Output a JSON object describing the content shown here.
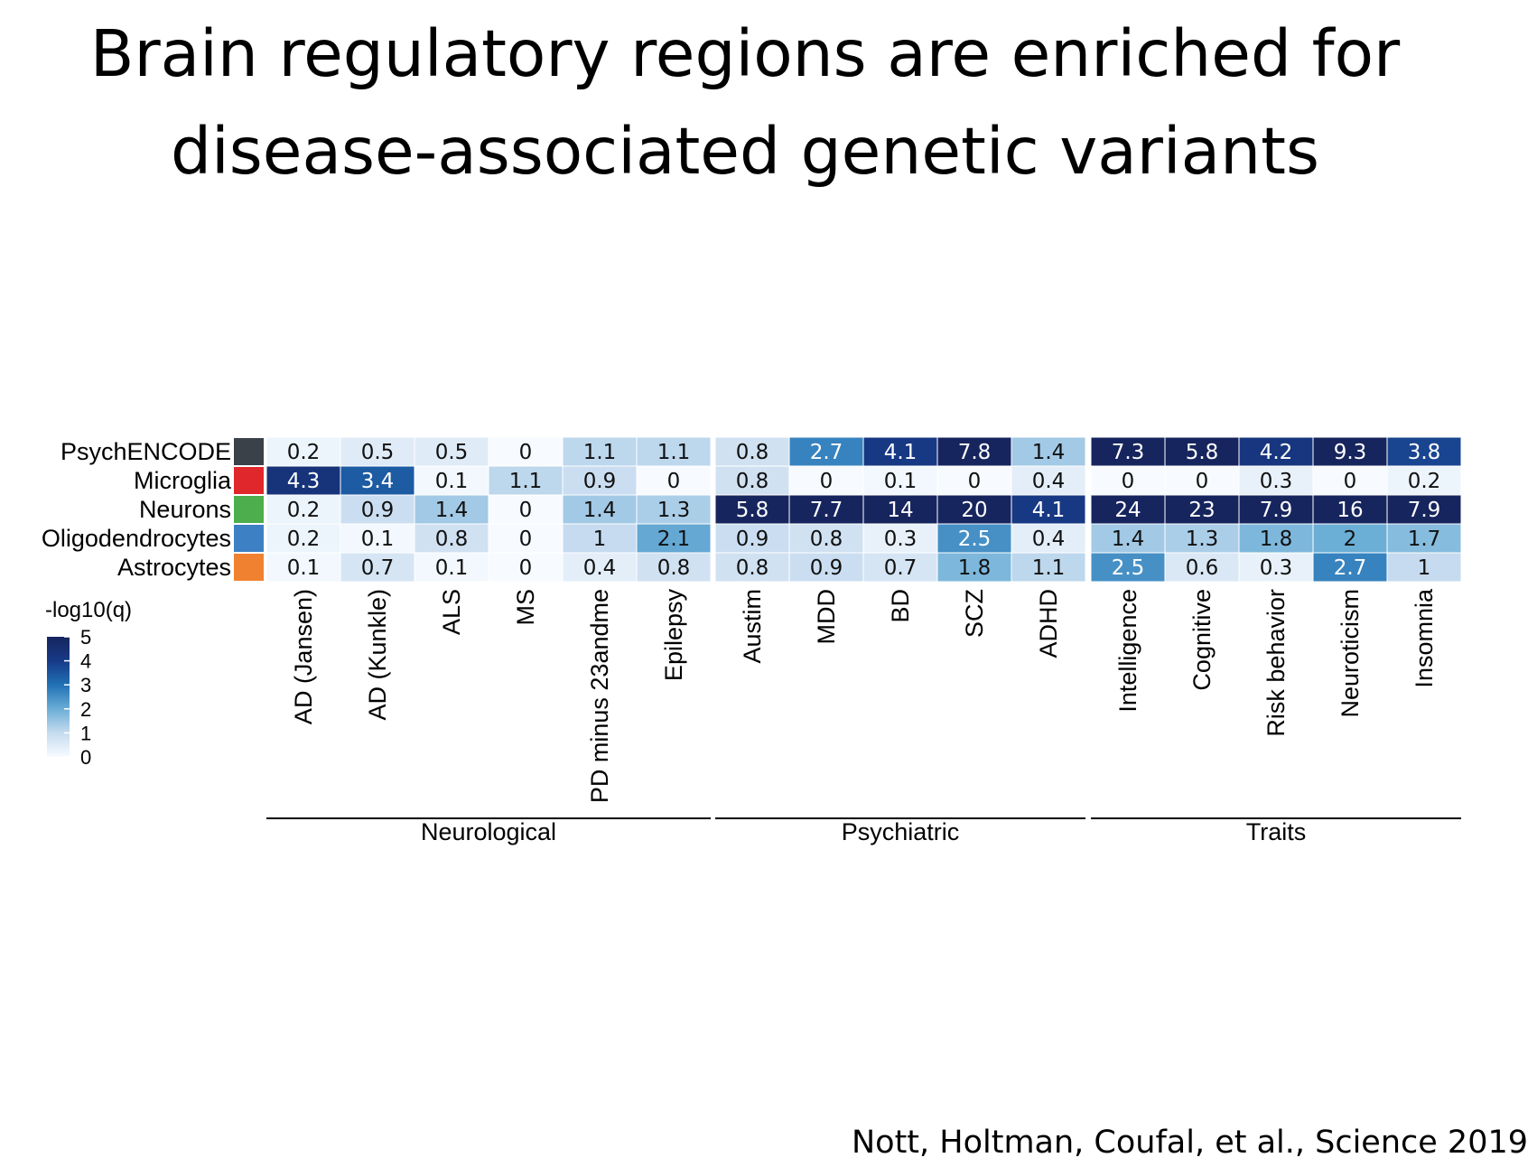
{
  "slide": {
    "title_line1": "Brain regulatory regions are enriched for",
    "title_line2": "disease-associated genetic variants",
    "citation": "Nott, Holtman, Coufal, et al., Science 2019"
  },
  "chart_data": {
    "type": "heatmap",
    "rows": [
      {
        "name": "PsychENCODE",
        "color": "#3a4148"
      },
      {
        "name": "Microglia",
        "color": "#e0272b"
      },
      {
        "name": "Neurons",
        "color": "#4cae4c"
      },
      {
        "name": "Oligodendrocytes",
        "color": "#3d80c4"
      },
      {
        "name": "Astrocytes",
        "color": "#f08130"
      }
    ],
    "columns": [
      "AD (Jansen)",
      "AD (Kunkle)",
      "ALS",
      "MS",
      "PD minus 23andme",
      "Epilepsy",
      "Austim",
      "MDD",
      "BD",
      "SCZ",
      "ADHD",
      "Intelligence",
      "Cognitive",
      "Risk behavior",
      "Neuroticism",
      "Insomnia"
    ],
    "groups": [
      {
        "name": "Neurological",
        "start": 0,
        "end": 5
      },
      {
        "name": "Psychiatric",
        "start": 6,
        "end": 10
      },
      {
        "name": "Traits",
        "start": 11,
        "end": 15
      }
    ],
    "values": [
      [
        0.2,
        0.5,
        0.5,
        0,
        1.1,
        1.1,
        0.8,
        2.7,
        4.1,
        7.8,
        1.4,
        7.3,
        5.8,
        4.2,
        9.3,
        3.8
      ],
      [
        4.3,
        3.4,
        0.1,
        1.1,
        0.9,
        0,
        0.8,
        0,
        0.1,
        0,
        0.4,
        0,
        0,
        0.3,
        0,
        0.2
      ],
      [
        0.2,
        0.9,
        1.4,
        0,
        1.4,
        1.3,
        5.8,
        7.7,
        14,
        20,
        4.1,
        24,
        23,
        7.9,
        16,
        7.9
      ],
      [
        0.2,
        0.1,
        0.8,
        0,
        1,
        2.1,
        0.9,
        0.8,
        0.3,
        2.5,
        0.4,
        1.4,
        1.3,
        1.8,
        2,
        1.7
      ],
      [
        0.1,
        0.7,
        0.1,
        0,
        0.4,
        0.8,
        0.8,
        0.9,
        0.7,
        1.8,
        1.1,
        2.5,
        0.6,
        0.3,
        2.7,
        1
      ]
    ],
    "colorbar": {
      "title": "-log10(q)",
      "range": [
        0,
        5
      ],
      "ticks": [
        0,
        1,
        2,
        3,
        4,
        5
      ],
      "colors": [
        "#f7fbff",
        "#c6dbef",
        "#6baed6",
        "#2171b5",
        "#173a87",
        "#17255e"
      ]
    }
  }
}
